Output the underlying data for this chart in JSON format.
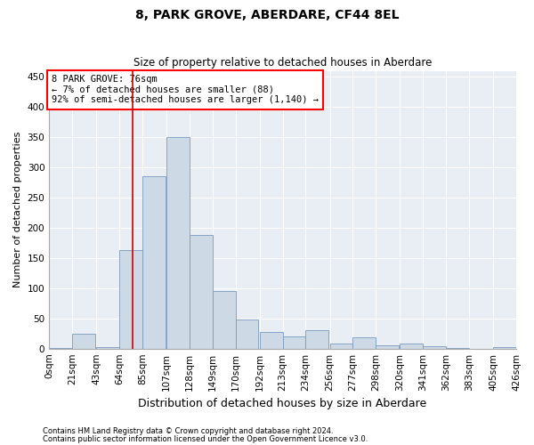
{
  "title": "8, PARK GROVE, ABERDARE, CF44 8EL",
  "subtitle": "Size of property relative to detached houses in Aberdare",
  "xlabel": "Distribution of detached houses by size in Aberdare",
  "ylabel": "Number of detached properties",
  "footnote1": "Contains HM Land Registry data © Crown copyright and database right 2024.",
  "footnote2": "Contains public sector information licensed under the Open Government Licence v3.0.",
  "annotation_line1": "8 PARK GROVE: 76sqm",
  "annotation_line2": "← 7% of detached houses are smaller (88)",
  "annotation_line3": "92% of semi-detached houses are larger (1,140) →",
  "bar_color": "#cdd9e5",
  "bar_edge_color": "#7a9abf",
  "line_color": "#cc0000",
  "bar_left_edges": [
    0,
    21,
    43,
    64,
    85,
    107,
    128,
    149,
    170,
    192,
    213,
    234,
    256,
    277,
    298,
    320,
    341,
    362,
    383,
    405
  ],
  "bar_heights": [
    1,
    25,
    2,
    163,
    285,
    350,
    188,
    95,
    48,
    27,
    20,
    30,
    9,
    18,
    5,
    9,
    4,
    1,
    0,
    2
  ],
  "bin_width": 21,
  "property_size": 76,
  "ylim": [
    0,
    460
  ],
  "yticks": [
    0,
    50,
    100,
    150,
    200,
    250,
    300,
    350,
    400,
    450
  ],
  "xtick_labels": [
    "0sqm",
    "21sqm",
    "43sqm",
    "64sqm",
    "85sqm",
    "107sqm",
    "128sqm",
    "149sqm",
    "170sqm",
    "192sqm",
    "213sqm",
    "234sqm",
    "256sqm",
    "277sqm",
    "298sqm",
    "320sqm",
    "341sqm",
    "362sqm",
    "383sqm",
    "405sqm",
    "426sqm"
  ],
  "background_color": "#e8eef4",
  "grid_color": "#ffffff",
  "title_fontsize": 10,
  "subtitle_fontsize": 8.5,
  "ylabel_fontsize": 8,
  "xlabel_fontsize": 9,
  "tick_fontsize": 7.5,
  "annot_fontsize": 7.5,
  "footnote_fontsize": 6
}
